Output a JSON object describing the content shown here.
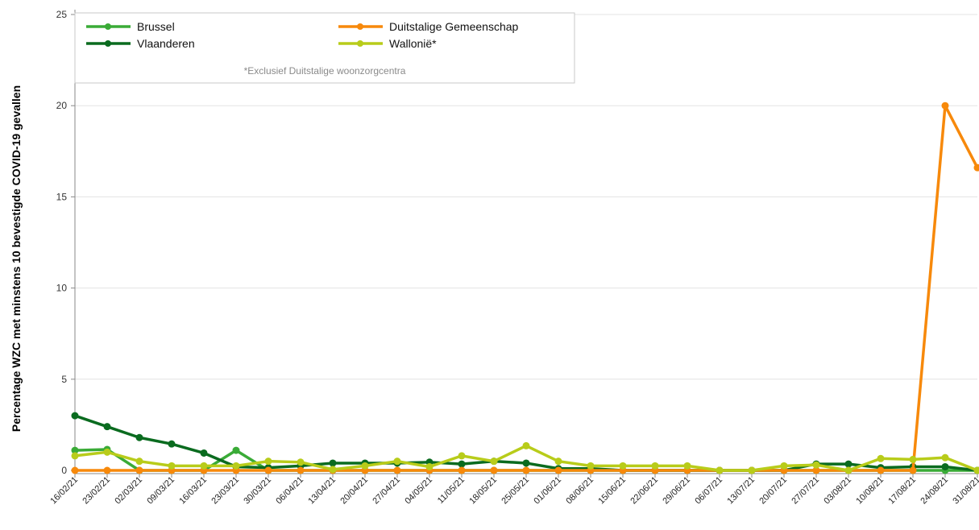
{
  "chart_data": {
    "type": "line",
    "title": "",
    "xlabel": "",
    "ylabel": "Percentage WZC met minstens 10 bevestigde COVID-19 gevallen",
    "ylim": [
      0,
      25
    ],
    "yticks": [
      0,
      5,
      10,
      15,
      20,
      25
    ],
    "grid": "horizontal",
    "legend_position": "top-left",
    "legend_note": "*Exclusief Duitstalige woonzorgcentra",
    "categories": [
      "16/02/21",
      "23/02/21",
      "02/03/21",
      "09/03/21",
      "16/03/21",
      "23/03/21",
      "30/03/21",
      "06/04/21",
      "13/04/21",
      "20/04/21",
      "27/04/21",
      "04/05/21",
      "11/05/21",
      "18/05/21",
      "25/05/21",
      "01/06/21",
      "08/06/21",
      "15/06/21",
      "22/06/21",
      "29/06/21",
      "06/07/21",
      "13/07/21",
      "20/07/21",
      "27/07/21",
      "03/08/21",
      "10/08/21",
      "17/08/21",
      "24/08/21",
      "31/08/21"
    ],
    "series": [
      {
        "name": "Brussel",
        "color": "#3aab37",
        "values": [
          1.1,
          1.15,
          0,
          0,
          0,
          1.1,
          0,
          0,
          0,
          0,
          0,
          0,
          0,
          0,
          0,
          0,
          0,
          0,
          0,
          0,
          0,
          0,
          0,
          0,
          0,
          0,
          0,
          0,
          0
        ]
      },
      {
        "name": "Vlaanderen",
        "color": "#0a6b1f",
        "values": [
          3.0,
          2.4,
          1.8,
          1.45,
          0.95,
          0.2,
          0.15,
          0.25,
          0.4,
          0.4,
          0.4,
          0.45,
          0.35,
          0.5,
          0.4,
          0.1,
          0.1,
          0,
          0,
          0,
          0,
          0,
          0,
          0.35,
          0.35,
          0.15,
          0.2,
          0.2,
          0
        ]
      },
      {
        "name": "Duitstalige Gemeenschap",
        "color": "#f7890b",
        "values": [
          0,
          0,
          0,
          0,
          0,
          0,
          0,
          0,
          0,
          0,
          0,
          0,
          0,
          0,
          0,
          0,
          0,
          0,
          0,
          0,
          0,
          0,
          0,
          0,
          0,
          0,
          0,
          20,
          16.6
        ]
      },
      {
        "name": "Wallonië*",
        "color": "#b8cc1a",
        "values": [
          0.8,
          1.0,
          0.5,
          0.25,
          0.25,
          0.25,
          0.5,
          0.45,
          0.05,
          0.25,
          0.5,
          0.2,
          0.8,
          0.5,
          1.35,
          0.5,
          0.25,
          0.25,
          0.25,
          0.25,
          0,
          0,
          0.25,
          0.3,
          0,
          0.65,
          0.6,
          0.7,
          0
        ]
      }
    ]
  }
}
